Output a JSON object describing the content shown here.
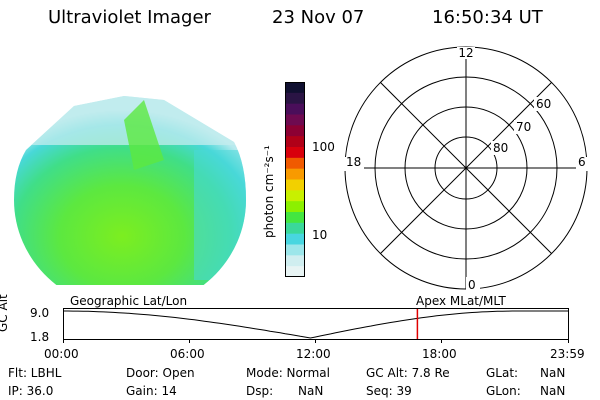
{
  "header": {
    "title": "Ultraviolet Imager",
    "date": "23 Nov 07",
    "time": "16:50:34 UT"
  },
  "colorbar": {
    "unit_label": "photon cm⁻²s⁻¹",
    "tick_labels": [
      "100",
      "10"
    ],
    "colors": [
      "#101030",
      "#2a1444",
      "#4a0e5a",
      "#6e0a50",
      "#8c0033",
      "#b00018",
      "#d8000c",
      "#f05a00",
      "#f89a00",
      "#f2d000",
      "#c8f000",
      "#8cf000",
      "#44e640",
      "#3ad89a",
      "#48d6e0",
      "#9ce6ea",
      "#d0eef0",
      "#e8f4f4"
    ]
  },
  "polar": {
    "clock_labels": {
      "top": "12",
      "left": "18",
      "right": "6",
      "bottom": "0"
    },
    "lat_labels": [
      "60",
      "70",
      "80"
    ]
  },
  "timeline": {
    "ylabel": "GC Alt",
    "y_top": "9.0",
    "y_bottom": "1.8",
    "left_caption": "Geographic Lat/Lon",
    "right_caption": "Apex MLat/MLT",
    "x_ticks": [
      "00:00",
      "06:00",
      "12:00",
      "18:00",
      "23:59"
    ],
    "marker_time_fraction": 0.7017,
    "line_color": "#000000",
    "marker_color": "#e00000"
  },
  "info": {
    "flt": "Flt: LBHL",
    "ip": "IP: 36.0",
    "door": "Door: Open",
    "gain": "Gain: 14",
    "mode": "Mode: Normal",
    "dsp_label": "Dsp:",
    "dsp_value": "NaN",
    "gcalt": "GC Alt: 7.8 Re",
    "seq": "Seq: 39",
    "glat_label": "GLat:",
    "glat_value": "NaN",
    "glon_label": "GLon:",
    "glon_value": "NaN"
  }
}
